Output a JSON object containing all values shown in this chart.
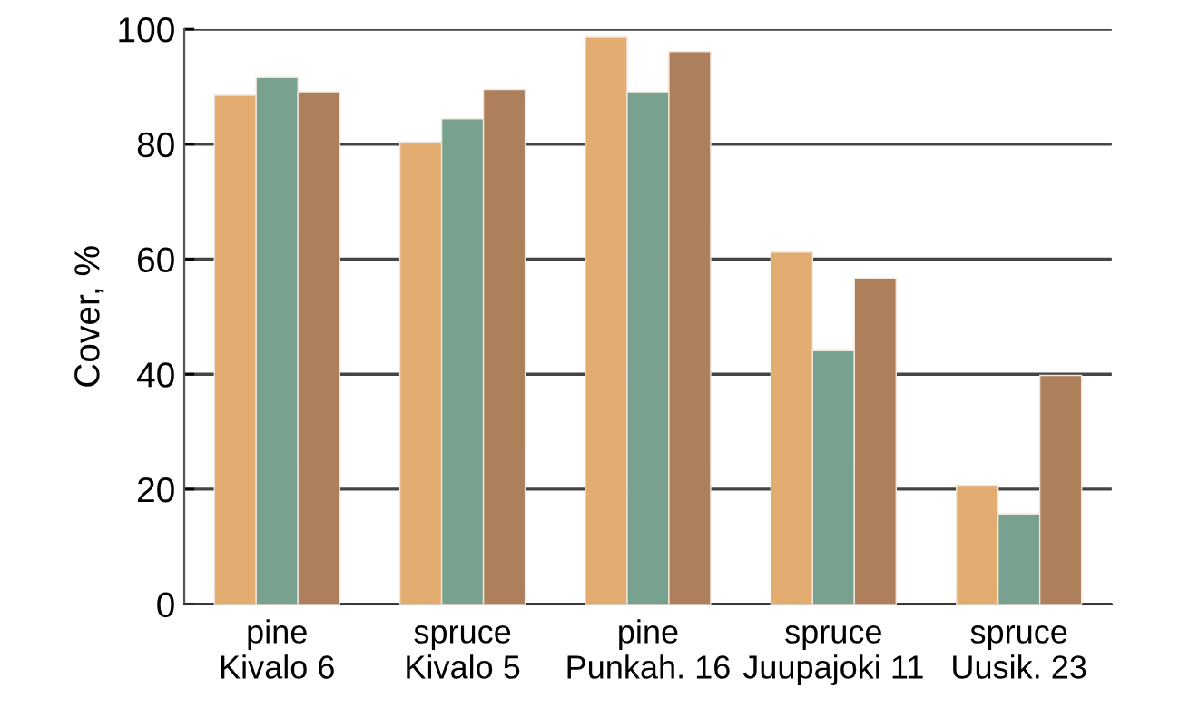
{
  "chart_data": {
    "type": "bar",
    "ylabel": "Cover, %",
    "categories": [
      "pine\nKivalo 6",
      "spruce\nKivalo 5",
      "pine\nPunkah. 16",
      "spruce\nJuupajoki 11",
      "spruce\nUusik. 23"
    ],
    "series": [
      {
        "color": "#e3ac70",
        "values": [
          88.5,
          80.4,
          98.6,
          61.2,
          20.7
        ]
      },
      {
        "color": "#78a28f",
        "values": [
          91.6,
          84.4,
          89.1,
          44.1,
          15.7
        ]
      },
      {
        "color": "#ad7f5a",
        "values": [
          89.1,
          89.5,
          96.1,
          56.7,
          39.8
        ]
      }
    ],
    "ylim": [
      0,
      100
    ],
    "yticks": [
      0,
      20,
      40,
      60,
      80,
      100
    ],
    "grid": "y"
  }
}
